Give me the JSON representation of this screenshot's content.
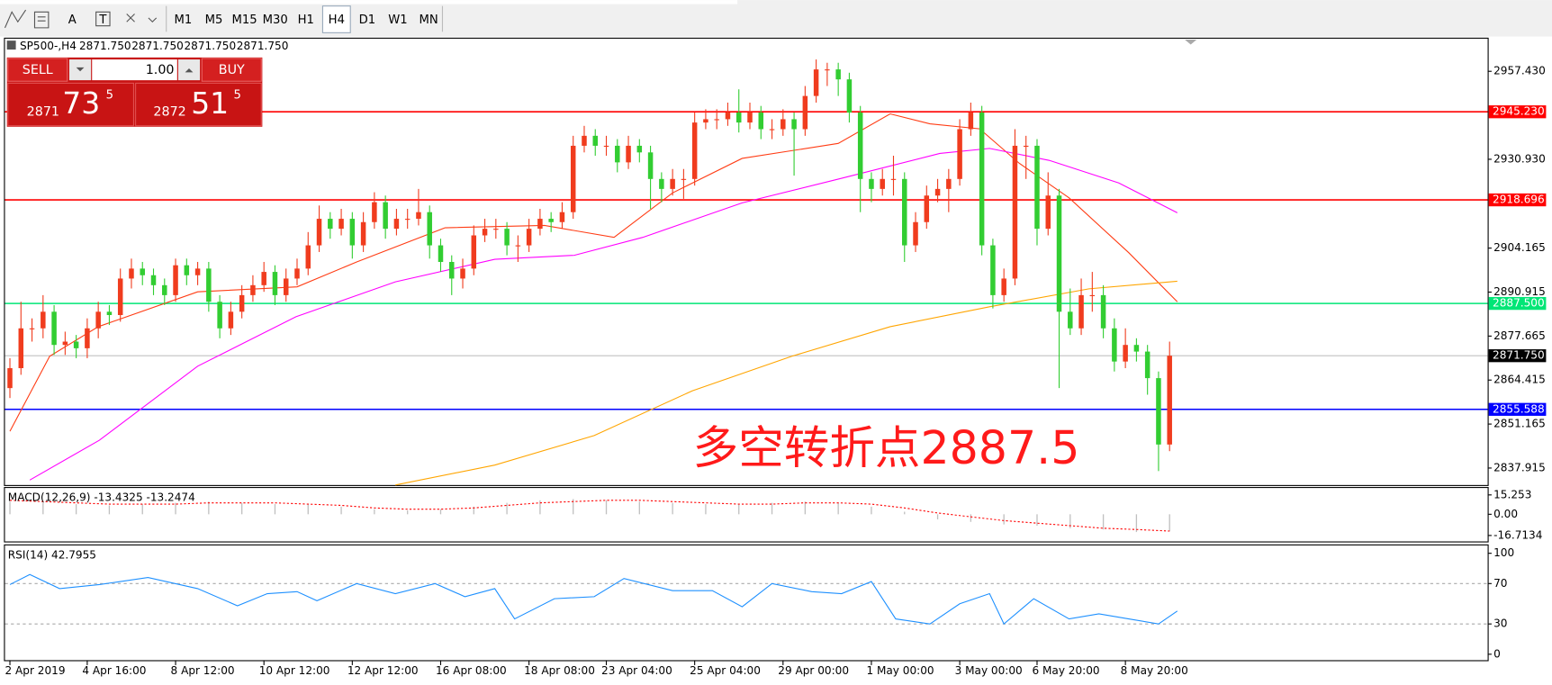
{
  "toolbar": {
    "tools": [
      "A",
      "T"
    ],
    "timeframes": [
      "M1",
      "M5",
      "M15",
      "M30",
      "H1",
      "H4",
      "D1",
      "W1",
      "MN"
    ]
  },
  "header": {
    "symbol": "SP500-,H4",
    "prices": [
      "2871.750",
      "2871.750",
      "2871.750",
      "2871.750"
    ]
  },
  "trade_panel": {
    "sell": "SELL",
    "buy": "BUY",
    "lot": "1.00",
    "bid": {
      "big": "2871",
      "main": "73",
      "small": "5"
    },
    "ask": {
      "big": "2872",
      "main": "51",
      "small": "5"
    }
  },
  "chart_data": [
    {
      "type": "candlestick",
      "annotation": "多空转折点2887.5",
      "up_color": "#f03c1e",
      "down_color": "#32cd32",
      "xlim": [
        -0.45,
        133.8
      ],
      "ylim": [
        2832.8,
        2967.56
      ],
      "yticks": [
        {
          "value": 2957.43,
          "label": "2957.430"
        },
        {
          "value": 2930.93,
          "label": "2930.930"
        },
        {
          "value": 2904.165,
          "label": "2904.165"
        },
        {
          "value": 2890.915,
          "label": "2890.915"
        },
        {
          "value": 2877.665,
          "label": "2877.665"
        },
        {
          "value": 2864.415,
          "label": "2864.415"
        },
        {
          "value": 2851.165,
          "label": "2851.165"
        },
        {
          "value": 2837.915,
          "label": "2837.915"
        }
      ],
      "xticks": [
        {
          "value": 0,
          "label": "2 Apr 2019"
        },
        {
          "value": 7,
          "label": "4 Apr 16:00"
        },
        {
          "value": 15,
          "label": "8 Apr 12:00"
        },
        {
          "value": 23,
          "label": "10 Apr 12:00"
        },
        {
          "value": 31,
          "label": "12 Apr 12:00"
        },
        {
          "value": 39,
          "label": "16 Apr 08:00"
        },
        {
          "value": 47,
          "label": "18 Apr 08:00"
        },
        {
          "value": 54,
          "label": "23 Apr 04:00"
        },
        {
          "value": 62,
          "label": "25 Apr 04:00"
        },
        {
          "value": 70,
          "label": "29 Apr 00:00"
        },
        {
          "value": 78,
          "label": "1 May 00:00"
        },
        {
          "value": 86,
          "label": "3 May 00:00"
        },
        {
          "value": 93,
          "label": "6 May 20:00"
        },
        {
          "value": 101,
          "label": "8 May 20:00"
        }
      ],
      "levels": [
        {
          "value": 2945.23,
          "label": "2945.230",
          "color": "#ff0000"
        },
        {
          "value": 2918.696,
          "label": "2918.696",
          "color": "#ff0000"
        },
        {
          "value": 2887.5,
          "label": "2887.500",
          "color": "#00e676"
        },
        {
          "value": 2855.588,
          "label": "2855.588",
          "color": "#0000ff"
        },
        {
          "value": 2871.75,
          "label": "2871.750",
          "color": "#000000"
        }
      ],
      "candles": [
        [
          2862,
          2871,
          2859,
          2868
        ],
        [
          2868,
          2888,
          2866,
          2880
        ],
        [
          2880,
          2883,
          2876,
          2880
        ],
        [
          2880,
          2890,
          2877,
          2885
        ],
        [
          2885,
          2887,
          2872,
          2875
        ],
        [
          2875,
          2879,
          2872,
          2876
        ],
        [
          2876,
          2878,
          2871,
          2874
        ],
        [
          2874,
          2883,
          2871,
          2880
        ],
        [
          2880,
          2888,
          2877,
          2885
        ],
        [
          2885,
          2887,
          2881,
          2884
        ],
        [
          2884,
          2898,
          2882,
          2895
        ],
        [
          2895,
          2901,
          2892,
          2898
        ],
        [
          2898,
          2900,
          2893,
          2896
        ],
        [
          2896,
          2898,
          2890,
          2893
        ],
        [
          2893,
          2895,
          2887,
          2890
        ],
        [
          2890,
          2901,
          2888,
          2899
        ],
        [
          2899,
          2901,
          2893,
          2896
        ],
        [
          2896,
          2900,
          2893,
          2898
        ],
        [
          2898,
          2900,
          2885,
          2888
        ],
        [
          2888,
          2890,
          2877,
          2880
        ],
        [
          2880,
          2888,
          2878,
          2885
        ],
        [
          2885,
          2893,
          2883,
          2890
        ],
        [
          2890,
          2896,
          2888,
          2893
        ],
        [
          2893,
          2900,
          2891,
          2897
        ],
        [
          2897,
          2899,
          2887,
          2890
        ],
        [
          2890,
          2898,
          2888,
          2895
        ],
        [
          2895,
          2901,
          2893,
          2898
        ],
        [
          2898,
          2909,
          2896,
          2905
        ],
        [
          2905,
          2917,
          2903,
          2913
        ],
        [
          2913,
          2915,
          2907,
          2910
        ],
        [
          2910,
          2916,
          2908,
          2913
        ],
        [
          2913,
          2915,
          2901,
          2905
        ],
        [
          2905,
          2915,
          2903,
          2912
        ],
        [
          2912,
          2921,
          2910,
          2918
        ],
        [
          2918,
          2920,
          2907,
          2910
        ],
        [
          2910,
          2916,
          2908,
          2913
        ],
        [
          2913,
          2916,
          2910,
          2913
        ],
        [
          2913,
          2922,
          2911,
          2915
        ],
        [
          2915,
          2917,
          2901,
          2905
        ],
        [
          2905,
          2907,
          2897,
          2900
        ],
        [
          2900,
          2902,
          2890,
          2895
        ],
        [
          2895,
          2901,
          2892,
          2898
        ],
        [
          2898,
          2911,
          2896,
          2908
        ],
        [
          2908,
          2913,
          2906,
          2910
        ],
        [
          2910,
          2913,
          2907,
          2910
        ],
        [
          2910,
          2912,
          2902,
          2905
        ],
        [
          2905,
          2908,
          2900,
          2905
        ],
        [
          2905,
          2913,
          2903,
          2910
        ],
        [
          2910,
          2916,
          2908,
          2913
        ],
        [
          2913,
          2915,
          2909,
          2912
        ],
        [
          2912,
          2918,
          2910,
          2915
        ],
        [
          2915,
          2938,
          2913,
          2935
        ],
        [
          2935,
          2941,
          2933,
          2938
        ],
        [
          2938,
          2940,
          2932,
          2935
        ],
        [
          2935,
          2938,
          2932,
          2935
        ],
        [
          2935,
          2937,
          2927,
          2930
        ],
        [
          2930,
          2938,
          2928,
          2935
        ],
        [
          2935,
          2937,
          2930,
          2933
        ],
        [
          2933,
          2935,
          2916,
          2925
        ],
        [
          2925,
          2927,
          2918,
          2922
        ],
        [
          2922,
          2928,
          2920,
          2925
        ],
        [
          2925,
          2928,
          2919,
          2925
        ],
        [
          2925,
          2945,
          2923,
          2942
        ],
        [
          2942,
          2946,
          2940,
          2943
        ],
        [
          2943,
          2946,
          2940,
          2943
        ],
        [
          2943,
          2948,
          2941,
          2945
        ],
        [
          2945,
          2952,
          2939,
          2942
        ],
        [
          2942,
          2948,
          2940,
          2945
        ],
        [
          2945,
          2947,
          2937,
          2940
        ],
        [
          2940,
          2943,
          2937,
          2940
        ],
        [
          2940,
          2946,
          2938,
          2943
        ],
        [
          2943,
          2945,
          2926,
          2940
        ],
        [
          2940,
          2953,
          2938,
          2950
        ],
        [
          2950,
          2961,
          2948,
          2958
        ],
        [
          2958,
          2960,
          2953,
          2958
        ],
        [
          2958,
          2960,
          2950,
          2955
        ],
        [
          2955,
          2957,
          2942,
          2945
        ],
        [
          2945,
          2947,
          2915,
          2925
        ],
        [
          2925,
          2927,
          2918,
          2922
        ],
        [
          2922,
          2928,
          2920,
          2925
        ],
        [
          2925,
          2932,
          2920,
          2925
        ],
        [
          2925,
          2927,
          2900,
          2905
        ],
        [
          2905,
          2915,
          2903,
          2912
        ],
        [
          2912,
          2923,
          2910,
          2920
        ],
        [
          2920,
          2925,
          2918,
          2922
        ],
        [
          2922,
          2928,
          2915,
          2925
        ],
        [
          2925,
          2943,
          2923,
          2940
        ],
        [
          2940,
          2948,
          2938,
          2945
        ],
        [
          2945,
          2947,
          2902,
          2905
        ],
        [
          2905,
          2907,
          2886,
          2890
        ],
        [
          2890,
          2898,
          2888,
          2895
        ],
        [
          2895,
          2940,
          2893,
          2935
        ],
        [
          2935,
          2938,
          2925,
          2935
        ],
        [
          2935,
          2937,
          2905,
          2910
        ],
        [
          2910,
          2927,
          2908,
          2920
        ],
        [
          2920,
          2922,
          2862,
          2885
        ],
        [
          2885,
          2892,
          2878,
          2880
        ],
        [
          2880,
          2895,
          2878,
          2890
        ],
        [
          2890,
          2897,
          2885,
          2890
        ],
        [
          2890,
          2893,
          2877,
          2880
        ],
        [
          2880,
          2883,
          2867,
          2870
        ],
        [
          2870,
          2880,
          2868,
          2875
        ],
        [
          2875,
          2877,
          2870,
          2873
        ],
        [
          2873,
          2875,
          2860,
          2865
        ],
        [
          2865,
          2867,
          2837,
          2845
        ],
        [
          2845,
          2876,
          2843,
          2871.75
        ]
      ],
      "series": [
        {
          "color": "#ff3c14",
          "x": [
            0,
            3.6,
            8,
            17,
            26,
            31.4,
            39.4,
            48.4,
            54.7,
            60,
            66.3,
            75,
            79.7,
            83.3,
            87.8,
            91.4,
            95.9,
            101.3,
            105.7
          ],
          "values": [
            2849,
            2871.6,
            2880.5,
            2891,
            2892.5,
            2900,
            2910.3,
            2911,
            2907.4,
            2920.8,
            2931.2,
            2935.7,
            2944.6,
            2941.6,
            2940.1,
            2929.7,
            2919.3,
            2902.8,
            2888
          ]
        },
        {
          "color": "#ff00ff",
          "x": [
            1.8,
            8.1,
            17,
            25.9,
            34.9,
            43.9,
            51.1,
            57.3,
            66.3,
            75.3,
            84.2,
            88.7,
            94.1,
            100.4,
            105.7
          ],
          "values": [
            2834.3,
            2846.3,
            2868.6,
            2883.5,
            2894,
            2900.8,
            2902,
            2907.4,
            2917.8,
            2925.2,
            2932.7,
            2934.2,
            2930.6,
            2923.8,
            2914.8
          ]
        },
        {
          "color": "#ffa500",
          "x": [
            34.9,
            43.9,
            52.9,
            61.8,
            70.8,
            79.7,
            88.7,
            97.7,
            105.7
          ],
          "values": [
            2832.8,
            2838.8,
            2847.7,
            2861.2,
            2871.6,
            2880.5,
            2886.5,
            2891.9,
            2894.2
          ]
        }
      ]
    },
    {
      "type": "macd",
      "label": "MACD(12,26,9) -13.4325 -13.2474",
      "xlim": [
        -0.45,
        133.8
      ],
      "ylim": [
        -21.4,
        21.5
      ],
      "yticks": [
        {
          "value": 15.253,
          "label": "15.253"
        },
        {
          "value": 0,
          "label": "0.00"
        },
        {
          "value": -16.7134,
          "label": "-16.7134"
        }
      ],
      "x": [
        0,
        3,
        6,
        9,
        12,
        15,
        18,
        21,
        24,
        27,
        30,
        33,
        36,
        39,
        42,
        45,
        48,
        51,
        54,
        57,
        60,
        63,
        66,
        69,
        72,
        75,
        78,
        81,
        84,
        87,
        90,
        93,
        96,
        99,
        102,
        105
      ],
      "series": [
        {
          "color": "#c0c0c0",
          "values": [
            10,
            9,
            8,
            7,
            8,
            9,
            10,
            9,
            8,
            8,
            6,
            4,
            3,
            4,
            6,
            9,
            11,
            12,
            11,
            10,
            9,
            8,
            8,
            9,
            10,
            9,
            6,
            2,
            -4,
            -6,
            -8,
            -9,
            -11,
            -12,
            -14,
            -13.4325
          ]
        },
        {
          "color": "#ff0000",
          "values": [
            11,
            10,
            9,
            8,
            8,
            8,
            9,
            9,
            9,
            8,
            7,
            5,
            4,
            4,
            5,
            7,
            9,
            10,
            11,
            11,
            10,
            9,
            8,
            8,
            9,
            9,
            8,
            5,
            1,
            -2,
            -5,
            -7,
            -9,
            -11,
            -12,
            -13.2474
          ]
        }
      ]
    },
    {
      "type": "line",
      "label": "RSI(14) 42.7955",
      "xlim": [
        -0.45,
        133.8
      ],
      "ylim": [
        -5.9,
        108.8
      ],
      "yticks": [
        100,
        70,
        30,
        0
      ],
      "levels": [
        70,
        30
      ],
      "x": [
        0,
        1.8,
        4.5,
        8.1,
        12.5,
        17,
        20.6,
        23.3,
        26,
        27.8,
        31.4,
        34.9,
        38.5,
        41.2,
        43.9,
        45.7,
        49.3,
        52.9,
        55.6,
        60,
        63.6,
        66.3,
        69,
        72.6,
        75.3,
        78,
        80.2,
        83.3,
        86,
        88.7,
        90,
        92.7,
        95.9,
        98.6,
        101.3,
        104,
        105.7
      ],
      "series": [
        {
          "color": "#1e90ff",
          "values": [
            69,
            79,
            65,
            69,
            76,
            65,
            48,
            60,
            62,
            53,
            70,
            60,
            70,
            57,
            65,
            35,
            55,
            57,
            75,
            63,
            63,
            47,
            70,
            62,
            60,
            72,
            35,
            30,
            50,
            60,
            30,
            55,
            35,
            40,
            35,
            30,
            42.7955
          ]
        }
      ]
    }
  ]
}
